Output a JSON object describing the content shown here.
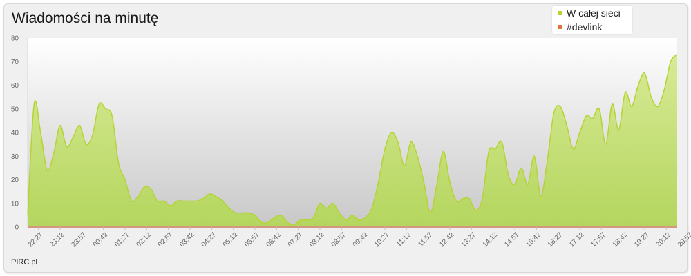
{
  "chart_data": {
    "type": "area",
    "title": "Wiadomości na minutę",
    "legend_position": "top-right",
    "grid": false,
    "ylim": [
      0,
      80
    ],
    "yticks": [
      "0",
      "10",
      "20",
      "30",
      "40",
      "50",
      "60",
      "70",
      "80"
    ],
    "xticks": [
      "22:27",
      "23:12",
      "23:57",
      "00:42",
      "01:27",
      "02:12",
      "02:57",
      "03:42",
      "04:27",
      "05:12",
      "05:57",
      "06:42",
      "07:27",
      "08:12",
      "08:57",
      "09:42",
      "10:27",
      "11:12",
      "11:57",
      "12:42",
      "13:27",
      "14:12",
      "14:57",
      "15:42",
      "16:27",
      "17:12",
      "17:57",
      "18:42",
      "19:27",
      "20:12",
      "20:57"
    ],
    "series": [
      {
        "name": "W całej sieci",
        "color": "#b5d334",
        "values": [
          5,
          52,
          40,
          24,
          31,
          43,
          34,
          38,
          43,
          35,
          39,
          52,
          50,
          47,
          27,
          20,
          11,
          13,
          17,
          16,
          11,
          11,
          9,
          11,
          11,
          11,
          11,
          12,
          14,
          13,
          11,
          8,
          6,
          6,
          6,
          5,
          2,
          2,
          4,
          5,
          2,
          1,
          3,
          3,
          4,
          10,
          8,
          10,
          6,
          3,
          5,
          3,
          4,
          8,
          19,
          33,
          40,
          36,
          26,
          36,
          30,
          19,
          6,
          18,
          32,
          19,
          11,
          12,
          12,
          7,
          12,
          32,
          33,
          36,
          22,
          18,
          25,
          18,
          30,
          13,
          28,
          48,
          51,
          43,
          33,
          40,
          47,
          46,
          50,
          35,
          52,
          41,
          57,
          51,
          60,
          65,
          55,
          51,
          58,
          70,
          73
        ]
      },
      {
        "name": "#devlink",
        "color": "#e4703a",
        "values": [
          0,
          0,
          0,
          0,
          0,
          0,
          0,
          0,
          0,
          0,
          0,
          0,
          0,
          0,
          0,
          0,
          0,
          0,
          0,
          0,
          0,
          0,
          0,
          0,
          0,
          0,
          0,
          0,
          0,
          0,
          0,
          0,
          0,
          0,
          0,
          0,
          0,
          0,
          0,
          0,
          0,
          0,
          0,
          0,
          0,
          0,
          0,
          0,
          0,
          0,
          0,
          0,
          0,
          0,
          0,
          0,
          0,
          0,
          0,
          0,
          0,
          0,
          0,
          0,
          0,
          0,
          0,
          0,
          0,
          0,
          0,
          0,
          0,
          0,
          0,
          0,
          0,
          0,
          0,
          0,
          0,
          0,
          0,
          0,
          0,
          0,
          0,
          0,
          0,
          0,
          0,
          0,
          0,
          0,
          0,
          0,
          0,
          0,
          0,
          0,
          0
        ]
      }
    ]
  },
  "footer": {
    "source": "PIRC.pl"
  }
}
